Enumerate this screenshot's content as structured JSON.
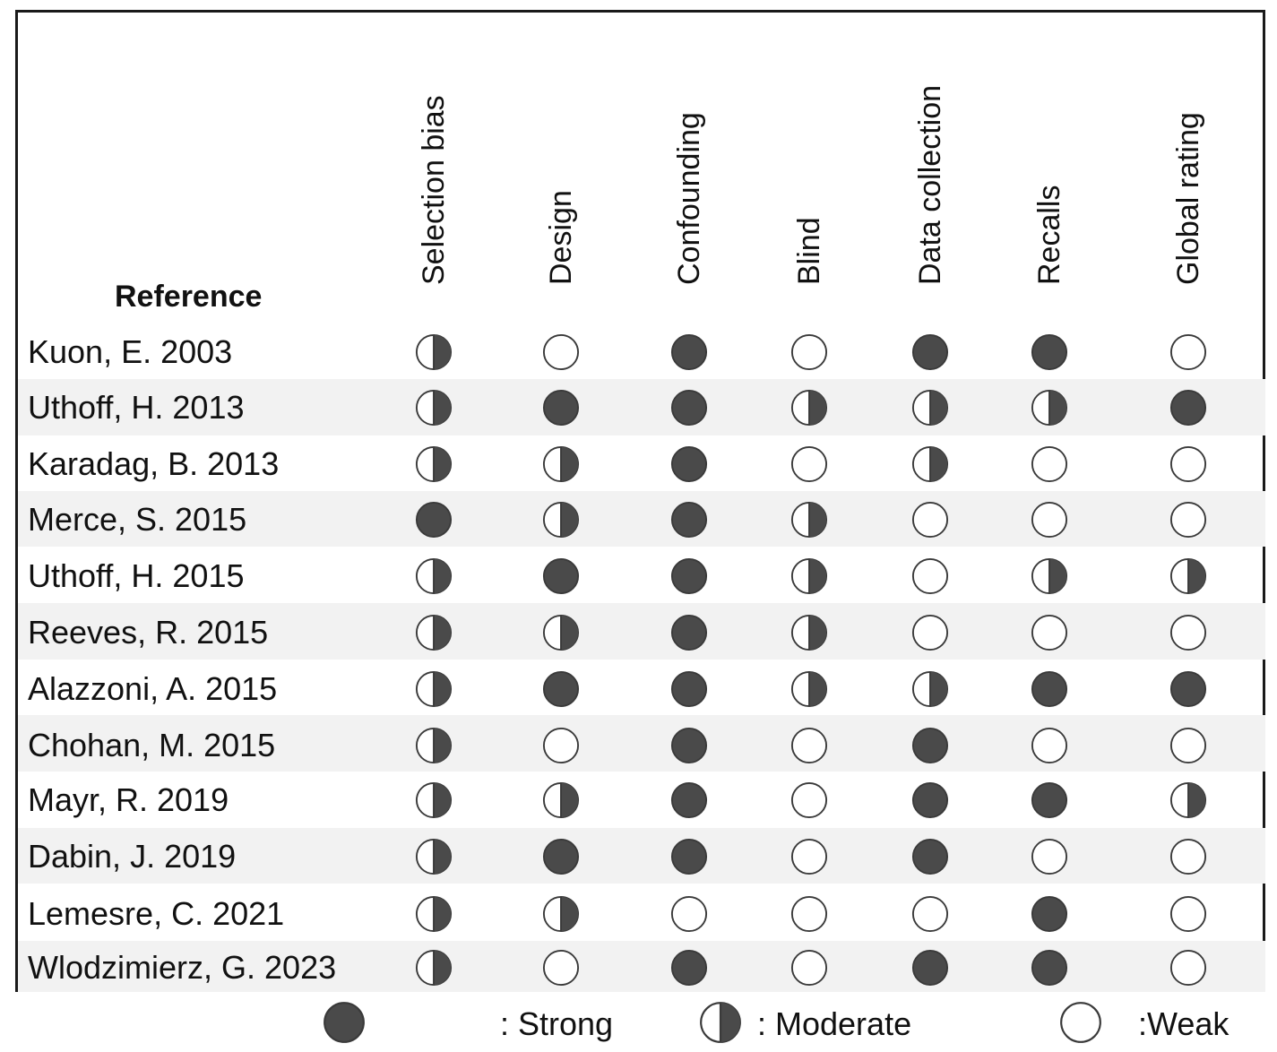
{
  "table": {
    "reference_header": "Reference",
    "columns": [
      "Selection bias",
      "Design",
      "Confounding",
      "Blind",
      "Data collection",
      "Recalls",
      "Global rating"
    ],
    "rows": [
      {
        "reference": "Kuon, E. 2003",
        "ratings": [
          "moderate",
          "weak",
          "strong",
          "weak",
          "strong",
          "strong",
          "weak"
        ]
      },
      {
        "reference": "Uthoff, H. 2013",
        "ratings": [
          "moderate",
          "strong",
          "strong",
          "moderate",
          "moderate",
          "moderate",
          "strong"
        ]
      },
      {
        "reference": "Karadag, B. 2013",
        "ratings": [
          "moderate",
          "moderate",
          "strong",
          "weak",
          "moderate",
          "weak",
          "weak"
        ]
      },
      {
        "reference": "Merce, S. 2015",
        "ratings": [
          "strong",
          "moderate",
          "strong",
          "moderate",
          "weak",
          "weak",
          "weak"
        ]
      },
      {
        "reference": "Uthoff, H. 2015",
        "ratings": [
          "moderate",
          "strong",
          "strong",
          "moderate",
          "weak",
          "moderate",
          "moderate"
        ]
      },
      {
        "reference": "Reeves, R. 2015",
        "ratings": [
          "moderate",
          "moderate",
          "strong",
          "moderate",
          "weak",
          "weak",
          "weak"
        ]
      },
      {
        "reference": "Alazzoni, A. 2015",
        "ratings": [
          "moderate",
          "strong",
          "strong",
          "moderate",
          "moderate",
          "strong",
          "strong"
        ]
      },
      {
        "reference": "Chohan, M. 2015",
        "ratings": [
          "moderate",
          "weak",
          "strong",
          "weak",
          "strong",
          "weak",
          "weak"
        ]
      },
      {
        "reference": "Mayr, R. 2019",
        "ratings": [
          "moderate",
          "moderate",
          "strong",
          "weak",
          "strong",
          "strong",
          "moderate"
        ]
      },
      {
        "reference": "Dabin, J. 2019",
        "ratings": [
          "moderate",
          "strong",
          "strong",
          "weak",
          "strong",
          "weak",
          "weak"
        ]
      },
      {
        "reference": "Lemesre, C. 2021",
        "ratings": [
          "moderate",
          "moderate",
          "weak",
          "weak",
          "weak",
          "strong",
          "weak"
        ]
      },
      {
        "reference": "Wlodzimierz, G. 2023",
        "ratings": [
          "moderate",
          "weak",
          "strong",
          "weak",
          "strong",
          "strong",
          "weak"
        ]
      }
    ]
  },
  "legend": {
    "strong_label": ": Strong",
    "moderate_label": ": Moderate",
    "weak_label": ":Weak"
  },
  "icons": {
    "strong": "filled-circle-icon",
    "moderate": "half-filled-circle-icon",
    "weak": "empty-circle-icon"
  },
  "colors": {
    "fill": "#4a4a4a",
    "stroke": "#3a3a3a",
    "row_shade": "#f2f2f2",
    "frame": "#1a1a1a"
  }
}
